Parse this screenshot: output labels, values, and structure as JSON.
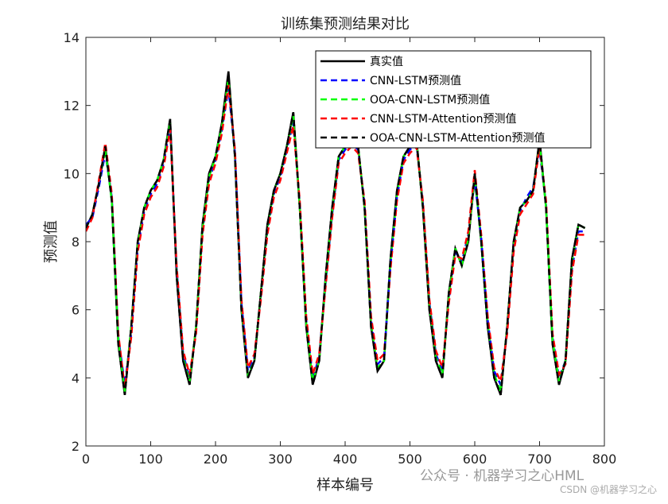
{
  "chart_data": {
    "type": "line",
    "title": "训练集预测结果对比",
    "xlabel": "样本编号",
    "ylabel": "预测值",
    "x": [
      0,
      10,
      20,
      30,
      40,
      50,
      60,
      70,
      80,
      90,
      100,
      110,
      120,
      130,
      140,
      150,
      160,
      170,
      180,
      190,
      200,
      210,
      220,
      230,
      240,
      250,
      260,
      270,
      280,
      290,
      300,
      310,
      320,
      330,
      340,
      350,
      360,
      370,
      380,
      390,
      400,
      410,
      420,
      430,
      440,
      450,
      460,
      470,
      480,
      490,
      500,
      510,
      520,
      530,
      540,
      550,
      560,
      570,
      580,
      590,
      600,
      610,
      620,
      630,
      640,
      650,
      660,
      670,
      680,
      690,
      700,
      710,
      720,
      730,
      740,
      750,
      760,
      770
    ],
    "series": [
      {
        "name": "真实值",
        "color": "#000000",
        "dash": false,
        "values": [
          8.4,
          8.8,
          9.7,
          10.8,
          9.2,
          5.0,
          3.5,
          5.5,
          8.0,
          9.0,
          9.5,
          9.8,
          10.4,
          11.6,
          7.0,
          4.5,
          3.8,
          5.5,
          8.5,
          10.0,
          10.5,
          11.5,
          13.0,
          10.5,
          6.0,
          4.0,
          4.5,
          6.5,
          8.5,
          9.5,
          10.0,
          10.8,
          11.8,
          9.0,
          5.5,
          3.8,
          4.5,
          7.0,
          9.0,
          10.5,
          10.8,
          11.0,
          10.8,
          9.0,
          5.5,
          4.2,
          4.5,
          7.5,
          9.5,
          10.5,
          10.8,
          11.0,
          9.0,
          6.0,
          4.5,
          4.0,
          6.5,
          7.8,
          7.3,
          8.0,
          10.0,
          8.0,
          5.5,
          4.0,
          3.5,
          5.5,
          8.0,
          9.0,
          9.2,
          9.5,
          11.0,
          9.0,
          5.0,
          3.8,
          4.5,
          7.5,
          8.5,
          8.4
        ]
      },
      {
        "name": "CNN-LSTM预测值",
        "color": "#0000ff",
        "dash": true,
        "values": [
          8.5,
          8.7,
          9.6,
          10.6,
          9.3,
          5.2,
          3.8,
          5.3,
          7.8,
          8.9,
          9.4,
          9.7,
          10.3,
          11.4,
          7.2,
          4.7,
          4.0,
          5.4,
          8.3,
          9.8,
          10.4,
          11.3,
          12.5,
          10.6,
          6.2,
          4.2,
          4.6,
          6.4,
          8.3,
          9.4,
          9.9,
          10.7,
          11.5,
          9.1,
          5.7,
          4.0,
          4.6,
          6.8,
          8.8,
          10.4,
          10.7,
          10.9,
          10.7,
          9.1,
          5.7,
          4.4,
          4.6,
          7.3,
          9.3,
          10.4,
          10.7,
          10.9,
          9.1,
          6.2,
          4.7,
          4.2,
          6.3,
          7.7,
          7.4,
          8.2,
          9.8,
          8.1,
          5.7,
          4.2,
          3.8,
          5.4,
          7.8,
          8.9,
          9.3,
          9.6,
          10.7,
          9.1,
          5.2,
          4.0,
          4.5,
          7.2,
          8.3,
          8.3
        ]
      },
      {
        "name": "OOA-CNN-LSTM预测值",
        "color": "#00ff00",
        "dash": true,
        "values": [
          8.4,
          8.8,
          9.7,
          10.7,
          9.2,
          5.1,
          3.6,
          5.5,
          7.9,
          9.0,
          9.5,
          9.8,
          10.4,
          11.5,
          7.1,
          4.6,
          3.9,
          5.5,
          8.4,
          9.9,
          10.5,
          11.4,
          12.8,
          10.5,
          6.1,
          4.1,
          4.5,
          6.5,
          8.4,
          9.5,
          10.0,
          10.8,
          11.7,
          9.0,
          5.6,
          3.9,
          4.5,
          6.9,
          8.9,
          10.5,
          10.8,
          11.0,
          10.8,
          9.0,
          5.6,
          4.3,
          4.5,
          7.4,
          9.4,
          10.5,
          10.8,
          11.0,
          9.0,
          6.1,
          4.6,
          4.1,
          6.4,
          7.8,
          7.3,
          8.1,
          9.9,
          8.0,
          5.6,
          4.1,
          3.6,
          5.5,
          7.9,
          9.0,
          9.2,
          9.5,
          10.9,
          9.0,
          5.1,
          3.9,
          4.5,
          7.4,
          8.5,
          8.4
        ]
      },
      {
        "name": "CNN-LSTM-Attention预测值",
        "color": "#ff0000",
        "dash": true,
        "values": [
          8.3,
          8.7,
          9.8,
          10.9,
          9.4,
          5.3,
          3.7,
          5.2,
          7.7,
          8.8,
          9.3,
          9.6,
          10.2,
          11.3,
          7.3,
          4.8,
          4.1,
          5.3,
          8.2,
          9.7,
          10.3,
          11.2,
          12.6,
          10.7,
          6.3,
          4.3,
          4.7,
          6.3,
          8.2,
          9.3,
          9.8,
          10.6,
          11.4,
          9.2,
          5.8,
          4.1,
          4.7,
          6.7,
          8.7,
          10.3,
          10.6,
          10.8,
          10.6,
          9.2,
          5.8,
          4.5,
          4.7,
          7.2,
          9.2,
          10.3,
          10.6,
          10.8,
          9.2,
          6.3,
          4.8,
          4.3,
          6.2,
          7.6,
          7.5,
          8.3,
          10.1,
          8.2,
          5.8,
          4.3,
          3.9,
          5.3,
          7.7,
          8.8,
          9.1,
          9.4,
          10.8,
          9.2,
          5.3,
          4.1,
          4.4,
          7.1,
          8.2,
          8.2
        ]
      },
      {
        "name": "OOA-CNN-LSTM-Attention预测值",
        "color": "#000000",
        "dash": true,
        "values": [
          8.4,
          8.8,
          9.7,
          10.8,
          9.2,
          5.0,
          3.5,
          5.5,
          8.0,
          9.0,
          9.5,
          9.8,
          10.4,
          11.6,
          7.0,
          4.5,
          3.8,
          5.5,
          8.5,
          10.0,
          10.5,
          11.5,
          12.9,
          10.5,
          6.0,
          4.0,
          4.5,
          6.5,
          8.5,
          9.5,
          10.0,
          10.8,
          11.8,
          9.0,
          5.5,
          3.8,
          4.5,
          7.0,
          9.0,
          10.5,
          10.8,
          11.0,
          10.8,
          9.0,
          5.5,
          4.2,
          4.5,
          7.5,
          9.5,
          10.5,
          10.8,
          11.0,
          9.0,
          6.0,
          4.5,
          4.0,
          6.5,
          7.8,
          7.3,
          8.0,
          10.0,
          8.0,
          5.5,
          4.0,
          3.5,
          5.5,
          8.0,
          9.0,
          9.2,
          9.5,
          11.0,
          9.0,
          5.0,
          3.8,
          4.5,
          7.5,
          8.5,
          8.4
        ]
      }
    ],
    "xlim": [
      0,
      800
    ],
    "xticks": [
      0,
      100,
      200,
      300,
      400,
      500,
      600,
      700,
      800
    ],
    "ylim": [
      2,
      14
    ],
    "yticks": [
      2,
      4,
      6,
      8,
      10,
      12,
      14
    ],
    "legend": "upper right",
    "watermark": "公众号 · 机器学习之心HML",
    "credit": "CSDN @机器学习之心"
  }
}
